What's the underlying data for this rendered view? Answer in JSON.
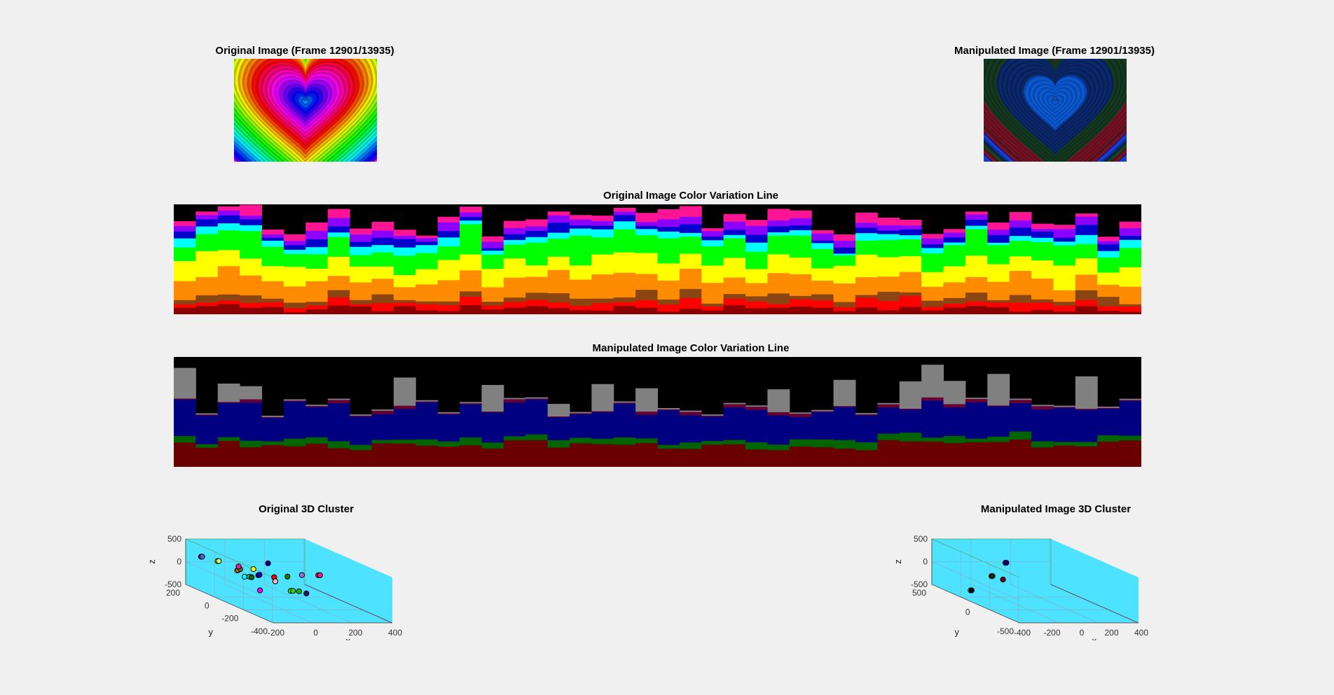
{
  "figure": {
    "orig_image_title": "Original Image (Frame 12901/13935)",
    "manip_image_title": "Manipulated Image (Frame 12901/13935)",
    "orig_line_title": "Original Image Color Variation Line",
    "manip_line_title": "Manipulated Image Color Variation Line",
    "orig_cluster_title": "Original 3D Cluster",
    "manip_cluster_title": "Manipulated Image 3D Cluster"
  },
  "chart_data": [
    {
      "type": "heatmap",
      "id": "original-color-variation-line",
      "title": "Original Image Color Variation Line",
      "n_columns": 44,
      "note": "stacked color strips per frame column",
      "palette": [
        "#000000",
        "#ff1493",
        "#8b00ff",
        "#0000cd",
        "#00ffff",
        "#00ff00",
        "#008000",
        "#ffff00",
        "#ff8c00",
        "#8b4513",
        "#ff0000",
        "#8b0000"
      ]
    },
    {
      "type": "heatmap",
      "id": "manipulated-color-variation-line",
      "title": "Manipulated Image Color Variation Line",
      "n_columns": 44,
      "palette": [
        "#000000",
        "#808080",
        "#660033",
        "#000080",
        "#006400",
        "#007070",
        "#8b4513",
        "#6b0000"
      ]
    },
    {
      "type": "scatter",
      "id": "original-3d-cluster",
      "title": "Original 3D Cluster",
      "xlabel": "x",
      "ylabel": "y",
      "zlabel": "z",
      "xticks": [
        "-200",
        "0",
        "200",
        "400"
      ],
      "yticks": [
        "200",
        "0",
        "-200",
        "-400"
      ],
      "zticks": [
        "500",
        "0",
        "-500"
      ],
      "xlim": [
        -300,
        450
      ],
      "ylim": [
        -450,
        250
      ],
      "zlim": [
        -500,
        500
      ],
      "points": [
        {
          "x": -250,
          "y": 150,
          "z": 200,
          "color": "#4b0082"
        },
        {
          "x": -240,
          "y": 150,
          "z": 200,
          "color": "#4169e1"
        },
        {
          "x": -150,
          "y": 100,
          "z": 150,
          "color": "#ffff66"
        },
        {
          "x": -140,
          "y": 100,
          "z": 150,
          "color": "#ccff66"
        },
        {
          "x": -80,
          "y": -20,
          "z": 50,
          "color": "#ff8c00"
        },
        {
          "x": -70,
          "y": -20,
          "z": 60,
          "color": "#ffa500"
        },
        {
          "x": -40,
          "y": 0,
          "z": 60,
          "color": "#556b2f"
        },
        {
          "x": -60,
          "y": -10,
          "z": 130,
          "color": "#ff1493"
        },
        {
          "x": -50,
          "y": -60,
          "z": -50,
          "color": "#00ffff"
        },
        {
          "x": -10,
          "y": -60,
          "z": -50,
          "color": "#20b2aa"
        },
        {
          "x": 10,
          "y": -60,
          "z": -60,
          "color": "#006400"
        },
        {
          "x": 40,
          "y": -40,
          "z": 100,
          "color": "#ffff00"
        },
        {
          "x": 50,
          "y": -80,
          "z": 0,
          "color": "#00008b"
        },
        {
          "x": 60,
          "y": -80,
          "z": 10,
          "color": "#0000cd"
        },
        {
          "x": 100,
          "y": -120,
          "z": 300,
          "color": "#000080"
        },
        {
          "x": 80,
          "y": -60,
          "z": -350,
          "color": "#ff00ff"
        },
        {
          "x": 120,
          "y": -160,
          "z": 30,
          "color": "#ff0000"
        },
        {
          "x": 130,
          "y": -160,
          "z": -60,
          "color": "#ffb6c1"
        },
        {
          "x": 200,
          "y": -200,
          "z": 80,
          "color": "#008000"
        },
        {
          "x": 180,
          "y": -260,
          "z": -180,
          "color": "#00ff00"
        },
        {
          "x": 200,
          "y": -260,
          "z": -180,
          "color": "#32cd32"
        },
        {
          "x": 250,
          "y": -260,
          "z": -190,
          "color": "#00c000"
        },
        {
          "x": 290,
          "y": -240,
          "z": 150,
          "color": "#9370db"
        },
        {
          "x": 280,
          "y": -300,
          "z": -200,
          "color": "#191970"
        },
        {
          "x": 380,
          "y": -300,
          "z": 200,
          "color": "#dc143c"
        },
        {
          "x": 395,
          "y": -300,
          "z": 200,
          "color": "#ff1493"
        }
      ]
    },
    {
      "type": "scatter",
      "id": "manipulated-3d-cluster",
      "title": "Manipulated Image 3D Cluster",
      "xlabel": "x",
      "ylabel": "y",
      "zlabel": "z",
      "xticks": [
        "-400",
        "-200",
        "0",
        "200",
        "400"
      ],
      "yticks": [
        "500",
        "0",
        "-500"
      ],
      "zticks": [
        "500",
        "0",
        "-500"
      ],
      "xlim": [
        -450,
        450
      ],
      "ylim": [
        -550,
        550
      ],
      "zlim": [
        -500,
        500
      ],
      "points": [
        {
          "x": -100,
          "y": -100,
          "z": 350,
          "color": "#000080"
        },
        {
          "x": -90,
          "y": -100,
          "z": 350,
          "color": "#00008b"
        },
        {
          "x": -180,
          "y": 0,
          "z": 0,
          "color": "#000033"
        },
        {
          "x": -170,
          "y": 0,
          "z": 0,
          "color": "#003300"
        },
        {
          "x": -100,
          "y": -60,
          "z": -40,
          "color": "#6b0000"
        },
        {
          "x": -300,
          "y": 150,
          "z": -400,
          "color": "#ffffff"
        },
        {
          "x": -290,
          "y": 150,
          "z": -400,
          "color": "#000000"
        }
      ]
    }
  ]
}
